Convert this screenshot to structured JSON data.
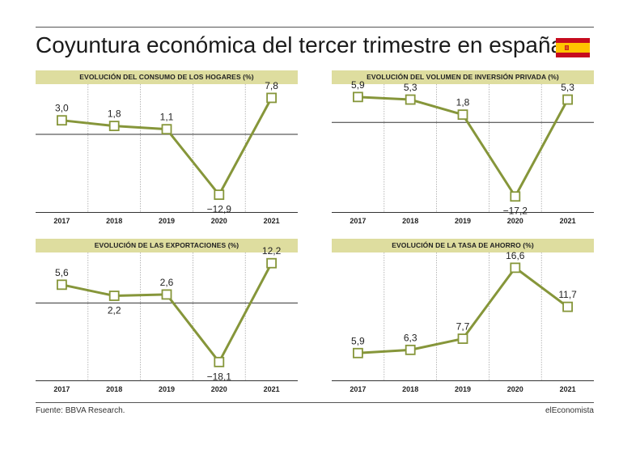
{
  "page": {
    "title": "Coyuntura económica del tercer trimestre en españa",
    "source": "Fuente: BBVA Research.",
    "brand": "elEconomista",
    "line_color": "#86963a",
    "header_bg": "#dedd9f"
  },
  "chart_data": [
    {
      "type": "line",
      "title": "EVOLUCIÓN DEL CONSUMO DE LOS HOGARES (%)",
      "x": [
        "2017",
        "2018",
        "2019",
        "2020",
        "2021"
      ],
      "values": [
        3.0,
        1.8,
        1.1,
        -12.9,
        7.8
      ],
      "labels": [
        "3,0",
        "1,8",
        "1,1",
        "−12,9",
        "7,8"
      ],
      "ylim": [
        -14,
        9
      ],
      "baseline": 0
    },
    {
      "type": "line",
      "title": "EVOLUCIÓN DEL VOLUMEN DE INVERSIÓN PRIVADA (%)",
      "x": [
        "2017",
        "2018",
        "2019",
        "2020",
        "2021"
      ],
      "values": [
        5.9,
        5.3,
        1.8,
        -17.2,
        5.3
      ],
      "labels": [
        "5,9",
        "5,3",
        "1,8",
        "−17,2",
        "5,3"
      ],
      "ylim": [
        -18,
        7
      ],
      "baseline": 0
    },
    {
      "type": "line",
      "title": "EVOLUCIÓN DE LAS EXPORTACIONES (%)",
      "x": [
        "2017",
        "2018",
        "2019",
        "2020",
        "2021"
      ],
      "values": [
        5.6,
        2.2,
        2.6,
        -18.1,
        12.2
      ],
      "labels": [
        "5,6",
        "2,2",
        "2,6",
        "−18,1",
        "12,2"
      ],
      "ylim": [
        -20,
        13
      ],
      "baseline": 0
    },
    {
      "type": "line",
      "title": "EVOLUCIÓN DE LA TASA DE AHORRO (%)",
      "x": [
        "2017",
        "2018",
        "2019",
        "2020",
        "2021"
      ],
      "values": [
        5.9,
        6.3,
        7.7,
        16.6,
        11.7
      ],
      "labels": [
        "5,9",
        "6,3",
        "7,7",
        "16,6",
        "11,7"
      ],
      "ylim": [
        4,
        17.5
      ],
      "baseline": null
    }
  ]
}
